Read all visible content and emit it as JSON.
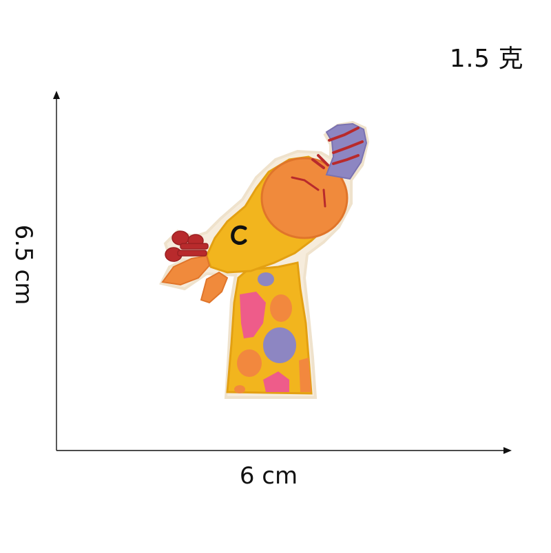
{
  "labels": {
    "weight": "1.5 克",
    "width": "6 cm",
    "height": "6.5 cm"
  },
  "colors": {
    "axis": "#111111",
    "body_yellow": "#f2b51e",
    "body_outline": "#e8a416",
    "head_orange": "#f08a3c",
    "spot_orange": "#f2883e",
    "spot_pink": "#ee5c8a",
    "spot_purple": "#8d86c2",
    "antler_red": "#b82a2c",
    "eye_black": "#111111",
    "felt_edge": "#f4ead8"
  },
  "icons": {
    "patch": "giraffe-embroidered-patch"
  }
}
